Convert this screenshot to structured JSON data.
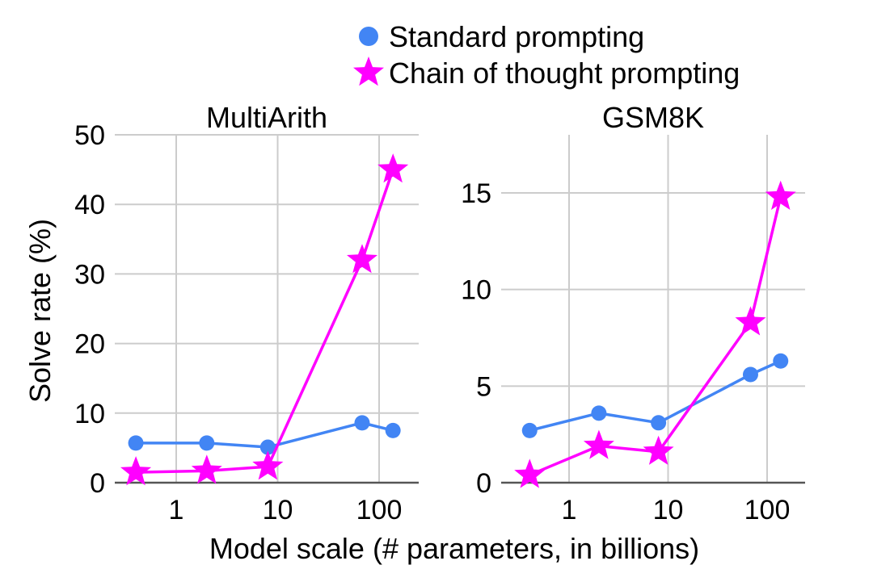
{
  "legend": {
    "items": [
      {
        "label": "Standard prompting",
        "marker": "circle",
        "color": "#4285f4"
      },
      {
        "label": "Chain of thought prompting",
        "marker": "star",
        "color": "#ff00ff"
      }
    ],
    "placement": "top"
  },
  "ylabel": "Solve rate (%)",
  "xlabel": "Model scale (# parameters, in billions)",
  "chart_data": [
    {
      "type": "line",
      "title": "MultiArith",
      "x_scale": "log",
      "x": [
        0.4,
        2,
        8,
        68,
        137
      ],
      "xticks": [
        1,
        10,
        100
      ],
      "xtick_labels": [
        "1",
        "10",
        "100"
      ],
      "ylim": [
        0,
        50
      ],
      "yticks": [
        0,
        10,
        20,
        30,
        40,
        50
      ],
      "ytick_labels": [
        "0",
        "10",
        "20",
        "30",
        "40",
        "50"
      ],
      "grid": true,
      "series": [
        {
          "name": "Standard prompting",
          "values": [
            5.7,
            5.7,
            5.1,
            8.6,
            7.5
          ]
        },
        {
          "name": "Chain of thought prompting",
          "values": [
            1.5,
            1.7,
            2.3,
            32.0,
            45.0
          ]
        }
      ]
    },
    {
      "type": "line",
      "title": "GSM8K",
      "x_scale": "log",
      "x": [
        0.4,
        2,
        8,
        68,
        137
      ],
      "xticks": [
        1,
        10,
        100
      ],
      "xtick_labels": [
        "1",
        "10",
        "100"
      ],
      "ylim": [
        0,
        18
      ],
      "yticks": [
        0,
        5,
        10,
        15
      ],
      "ytick_labels": [
        "0",
        "5",
        "10",
        "15"
      ],
      "grid": true,
      "series": [
        {
          "name": "Standard prompting",
          "values": [
            2.7,
            3.6,
            3.1,
            5.6,
            6.3
          ]
        },
        {
          "name": "Chain of thought prompting",
          "values": [
            0.4,
            1.9,
            1.6,
            8.3,
            14.8
          ]
        }
      ]
    }
  ]
}
